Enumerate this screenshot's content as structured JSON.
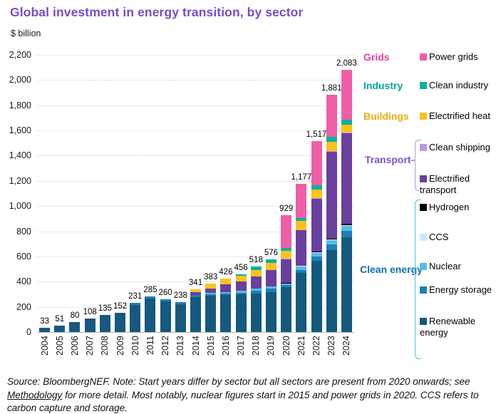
{
  "title": "Global investment in energy transition, by sector",
  "axis": {
    "y_unit_label": "$ billion",
    "y_ticks": [
      "0",
      "200",
      "400",
      "600",
      "800",
      "1,000",
      "1,200",
      "1,400",
      "1,600",
      "1,800",
      "2,000",
      "2,200"
    ],
    "ylim": [
      0,
      2200
    ]
  },
  "footer": {
    "text_before_link": "Source: BloombergNEF. Note: Start years differ by sector but all sectors are present from 2020 onwards; see ",
    "link_text": "Methodology",
    "text_after_link": " for more detail. Most notably, nuclear figures start in 2015 and power grids in 2020. CCS refers to carbon capture and storage."
  },
  "legend": {
    "groups": [
      {
        "label": "Grids",
        "label_color": "#ee3a9a",
        "bracket_color": null,
        "items": [
          {
            "label": "Power grids",
            "color": "#ee5fa7"
          }
        ]
      },
      {
        "label": "Industry",
        "label_color": "#00a79b",
        "bracket_color": null,
        "items": [
          {
            "label": "Clean industry",
            "color": "#0ab0a0"
          }
        ]
      },
      {
        "label": "Buildings",
        "label_color": "#e8ae0e",
        "bracket_color": null,
        "items": [
          {
            "label": "Electrified heat",
            "color": "#fbc21d"
          }
        ]
      },
      {
        "label": "Transport",
        "label_color": "#7c52c7",
        "bracket_color": "#b49ce1",
        "items": [
          {
            "label": "Clean shipping",
            "color": "#b49ce1"
          },
          {
            "label": "Electrified transport",
            "color": "#6a3f9e"
          }
        ]
      },
      {
        "label": "Clean energy",
        "label_color": "#0d6ea6",
        "bracket_color": "#56bde8",
        "items": [
          {
            "label": "Hydrogen",
            "color": "#000000"
          },
          {
            "label": "CCS",
            "color": "#cfeaf6"
          },
          {
            "label": "Nuclear",
            "color": "#56bde8"
          },
          {
            "label": "Energy storage",
            "color": "#1b7fb8"
          },
          {
            "label": "Renewable energy",
            "color": "#15597e"
          }
        ]
      }
    ]
  },
  "chart_data": {
    "type": "bar",
    "stacked": true,
    "title": "Global investment in energy transition, by sector",
    "xlabel": "",
    "ylabel": "$ billion",
    "ylim": [
      0,
      2200
    ],
    "grid": true,
    "legend_position": "right",
    "categories": [
      "2004",
      "2005",
      "2006",
      "2007",
      "2008",
      "2009",
      "2010",
      "2011",
      "2012",
      "2013",
      "2014",
      "2015",
      "2016",
      "2017",
      "2018",
      "2019",
      "2020",
      "2021",
      "2022",
      "2023",
      "2024"
    ],
    "totals": [
      33,
      51,
      80,
      108,
      135,
      152,
      231,
      285,
      260,
      238,
      341,
      383,
      426,
      456,
      518,
      576,
      929,
      1177,
      1517,
      1881,
      2083
    ],
    "totals_display": [
      "33",
      "51",
      "80",
      "108",
      "135",
      "152",
      "231",
      "285",
      "260",
      "238",
      "341",
      "383",
      "426",
      "456",
      "518",
      "576",
      "929",
      "1,177",
      "1,517",
      "1,881",
      "2,083"
    ],
    "series": [
      {
        "name": "Renewable energy",
        "color": "#15597e",
        "values": [
          33,
          51,
          80,
          108,
          135,
          152,
          216,
          268,
          244,
          223,
          280,
          288,
          292,
          298,
          308,
          318,
          357,
          470,
          565,
          650,
          750
        ]
      },
      {
        "name": "Energy storage",
        "color": "#1b7fb8",
        "values": [
          0,
          0,
          0,
          0,
          0,
          0,
          15,
          17,
          16,
          15,
          16,
          12,
          13,
          15,
          20,
          25,
          15,
          25,
          35,
          45,
          55
        ]
      },
      {
        "name": "Nuclear",
        "color": "#56bde8",
        "values": [
          0,
          0,
          0,
          0,
          0,
          0,
          0,
          0,
          0,
          0,
          0,
          12,
          14,
          15,
          18,
          20,
          12,
          25,
          28,
          32,
          35
        ]
      },
      {
        "name": "CCS",
        "color": "#cfeaf6",
        "values": [
          0,
          0,
          0,
          0,
          0,
          0,
          0,
          0,
          0,
          0,
          0,
          0,
          0,
          0,
          0,
          0,
          3,
          5,
          5,
          6,
          8
        ]
      },
      {
        "name": "Hydrogen",
        "color": "#000000",
        "values": [
          0,
          0,
          0,
          0,
          0,
          0,
          0,
          0,
          0,
          0,
          0,
          0,
          0,
          0,
          0,
          0,
          2,
          3,
          5,
          10,
          10
        ]
      },
      {
        "name": "Electrified transport",
        "color": "#6a3f9e",
        "values": [
          0,
          0,
          0,
          0,
          0,
          0,
          0,
          0,
          0,
          0,
          22,
          36,
          58,
          76,
          97,
          132,
          190,
          280,
          420,
          690,
          720
        ]
      },
      {
        "name": "Clean shipping",
        "color": "#b49ce1",
        "values": [
          0,
          0,
          0,
          0,
          0,
          0,
          0,
          0,
          0,
          0,
          0,
          0,
          0,
          0,
          0,
          0,
          2,
          3,
          4,
          5,
          5
        ]
      },
      {
        "name": "Electrified heat",
        "color": "#fbc21d",
        "values": [
          0,
          0,
          0,
          0,
          0,
          0,
          0,
          0,
          0,
          0,
          23,
          35,
          49,
          41,
          50,
          55,
          63,
          70,
          72,
          75,
          65
        ]
      },
      {
        "name": "Clean industry",
        "color": "#0ab0a0",
        "values": [
          0,
          0,
          0,
          0,
          0,
          0,
          0,
          0,
          0,
          0,
          0,
          0,
          0,
          11,
          25,
          26,
          23,
          26,
          33,
          38,
          35
        ]
      },
      {
        "name": "Power grids",
        "color": "#ee5fa7",
        "values": [
          0,
          0,
          0,
          0,
          0,
          0,
          0,
          0,
          0,
          0,
          0,
          0,
          0,
          0,
          0,
          0,
          262,
          270,
          350,
          330,
          400
        ]
      }
    ]
  }
}
